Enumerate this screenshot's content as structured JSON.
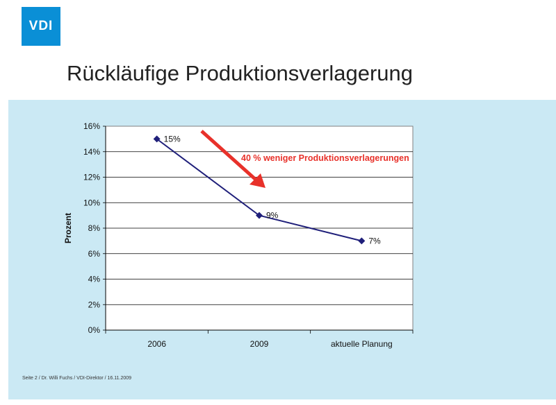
{
  "logo_text": "VDI",
  "title": "Rückläufige Produktionsverlagerung",
  "footer": "Seite 2 / Dr. Willi Fuchs / VDI-Direktor / 16.11.2009",
  "colors": {
    "panel": "#cbe9f4",
    "series": "#1f1f7a",
    "annotation": "#e8312a",
    "logo": "#0a8fd6"
  },
  "chart_data": {
    "type": "line",
    "categories": [
      "2006",
      "2009",
      "aktuelle Planung"
    ],
    "series": [
      {
        "values": [
          15,
          9,
          7
        ],
        "data_labels": [
          "15%",
          "9%",
          "7%"
        ]
      }
    ],
    "title": "",
    "xlabel": "",
    "ylabel": "Prozent",
    "ylim": [
      0,
      16
    ],
    "yticks": [
      0,
      2,
      4,
      6,
      8,
      10,
      12,
      14,
      16
    ],
    "ytick_labels": [
      "0%",
      "2%",
      "4%",
      "6%",
      "8%",
      "10%",
      "12%",
      "14%",
      "16%"
    ],
    "grid": true,
    "annotation": {
      "text": "40 % weniger Produktionsverlagerungen",
      "arrow": "down-right"
    }
  }
}
